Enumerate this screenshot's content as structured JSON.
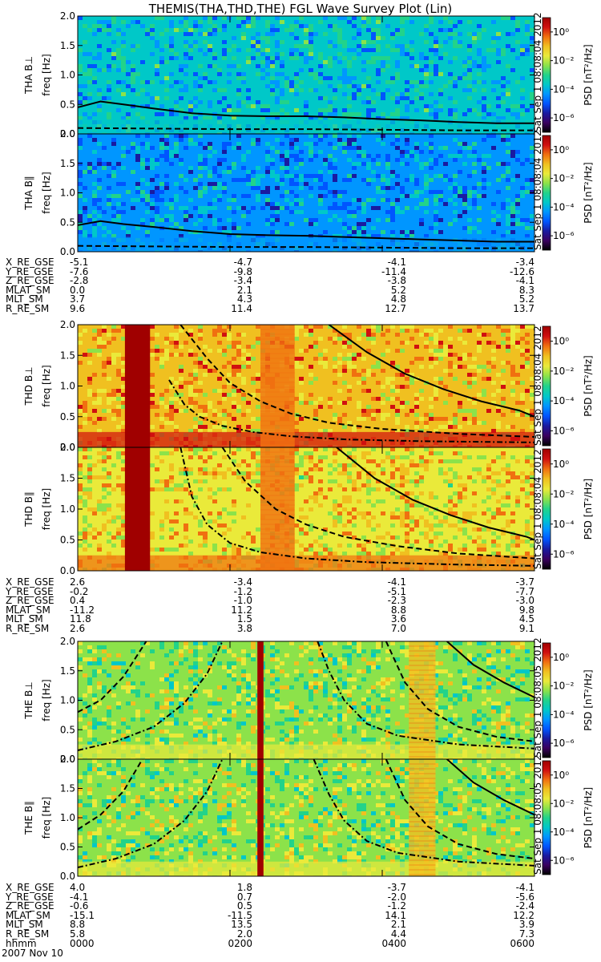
{
  "title": "THEMIS(THA,THD,THE) FGL Wave Survey Plot (Lin)",
  "colors": {
    "cmap": [
      "#000000",
      "#3a0060",
      "#1a1aa0",
      "#0055ff",
      "#0096ff",
      "#00c8c8",
      "#22d38a",
      "#8ce24a",
      "#eaea3a",
      "#f0c020",
      "#f07010",
      "#d01010",
      "#a00000"
    ],
    "line": "#000000",
    "frame": "#000000"
  },
  "chart_data": {
    "type": "heatmap",
    "x_unit": "hhmm",
    "x_range": [
      0,
      6
    ],
    "x_ticks": [
      "0000",
      "0200",
      "0400",
      "0600"
    ],
    "ylim": [
      0,
      2.0
    ],
    "y_ticks": [
      "0.0",
      "0.5",
      "1.0",
      "1.5",
      "2.0"
    ],
    "ylabel": "freq [Hz]",
    "colorbar": {
      "label": "PSD [nT²/Hz]",
      "ticks": [
        "10⁰",
        "10⁻²",
        "10⁻⁴",
        "10⁻⁶"
      ],
      "log_range": [
        -7,
        1
      ]
    },
    "panels": [
      {
        "probe": "THA",
        "component": "B⊥",
        "stamp": "Sat Sep 1 08:08:04 2012",
        "base_level": -3.8,
        "bg_level": 0.3,
        "lines": [
          {
            "style": "solid",
            "x": [
              0,
              0.3,
              0.6,
              1.0,
              1.5,
              2.0,
              2.5,
              3.0,
              3.5,
              4.0,
              4.5,
              5.0,
              5.5,
              6.0
            ],
            "y": [
              0.45,
              0.55,
              0.5,
              0.43,
              0.35,
              0.31,
              0.3,
              0.3,
              0.28,
              0.25,
              0.23,
              0.2,
              0.18,
              0.18
            ]
          },
          {
            "style": "dashed",
            "x": [
              0,
              1,
              2,
              3,
              4,
              5,
              6
            ],
            "y": [
              0.1,
              0.09,
              0.08,
              0.08,
              0.07,
              0.06,
              0.06
            ]
          }
        ]
      },
      {
        "probe": "THA",
        "component": "B∥",
        "stamp": "Sat Sep 1 08:08:04 2012",
        "base_level": -4.2,
        "bg_level": 0.2,
        "lines": [
          {
            "style": "solid",
            "x": [
              0,
              0.3,
              0.6,
              1.0,
              1.5,
              2.0,
              2.5,
              3.0,
              3.5,
              4.0,
              4.5,
              5.0,
              5.5,
              6.0
            ],
            "y": [
              0.45,
              0.52,
              0.47,
              0.42,
              0.35,
              0.3,
              0.28,
              0.27,
              0.25,
              0.23,
              0.21,
              0.19,
              0.17,
              0.17
            ]
          },
          {
            "style": "dashed",
            "x": [
              0,
              1,
              2,
              3,
              4,
              5,
              6
            ],
            "y": [
              0.1,
              0.09,
              0.08,
              0.08,
              0.07,
              0.06,
              0.06
            ]
          }
        ]
      },
      {
        "probe": "THD",
        "component": "B⊥",
        "stamp": "Sat Sep 1 08:08:04 2012",
        "base_level": -1.2,
        "bg_level": 1.0,
        "bursts": [
          {
            "x0": 0.62,
            "x1": 0.95,
            "level": 2.0
          }
        ],
        "bands": [
          {
            "x0": 2.4,
            "x1": 2.85,
            "level": -0.8
          }
        ],
        "lines": [
          {
            "style": "solid",
            "x": [
              3.3,
              3.8,
              4.3,
              4.8,
              5.3,
              5.8,
              6.0
            ],
            "y": [
              2.0,
              1.55,
              1.2,
              0.95,
              0.75,
              0.6,
              0.5
            ]
          },
          {
            "style": "dashed",
            "x": [
              1.35,
              1.7,
              2.0,
              2.4,
              2.8,
              3.3,
              4.0,
              5.0,
              6.0
            ],
            "y": [
              2.0,
              1.45,
              1.05,
              0.75,
              0.55,
              0.4,
              0.3,
              0.22,
              0.17
            ]
          },
          {
            "style": "dashdot",
            "x": [
              1.2,
              1.4,
              1.6,
              1.9,
              2.3,
              2.8,
              3.5,
              4.5,
              6.0
            ],
            "y": [
              1.1,
              0.7,
              0.5,
              0.35,
              0.25,
              0.18,
              0.13,
              0.1,
              0.08
            ]
          }
        ]
      },
      {
        "probe": "THD",
        "component": "B∥",
        "stamp": "Sat Sep 1 08:08:04 2012",
        "base_level": -1.5,
        "bg_level": 1.0,
        "bursts": [
          {
            "x0": 0.62,
            "x1": 0.95,
            "level": 2.0
          }
        ],
        "bands": [
          {
            "x0": 2.4,
            "x1": 2.85,
            "level": -0.8
          }
        ],
        "lines": [
          {
            "style": "solid",
            "x": [
              3.4,
              3.9,
              4.4,
              4.9,
              5.4,
              5.9,
              6.0
            ],
            "y": [
              2.0,
              1.5,
              1.15,
              0.9,
              0.7,
              0.55,
              0.5
            ]
          },
          {
            "style": "dashed",
            "x": [
              1.9,
              2.2,
              2.6,
              3.0,
              3.5,
              4.2,
              5.0,
              6.0
            ],
            "y": [
              2.0,
              1.45,
              1.0,
              0.75,
              0.55,
              0.4,
              0.28,
              0.2
            ]
          },
          {
            "style": "dashdot",
            "x": [
              1.35,
              1.5,
              1.7,
              2.0,
              2.4,
              3.0,
              3.8,
              5.0,
              6.0
            ],
            "y": [
              2.0,
              1.2,
              0.75,
              0.45,
              0.3,
              0.2,
              0.14,
              0.1,
              0.08
            ]
          }
        ]
      },
      {
        "probe": "THE",
        "component": "B⊥",
        "stamp": "Sat Sep 1 08:08:05 2012",
        "base_level": -2.3,
        "bg_level": 0.8,
        "bursts": [
          {
            "x0": 2.36,
            "x1": 2.44,
            "level": 2.0
          }
        ],
        "bands": [
          {
            "x0": 4.35,
            "x1": 4.7,
            "level": -1.0
          }
        ],
        "lines": [
          {
            "style": "solid",
            "x": [
              4.85,
              5.2,
              5.6,
              6.0
            ],
            "y": [
              2.0,
              1.6,
              1.3,
              1.05
            ]
          },
          {
            "style": "dashed",
            "x": [
              0,
              0.3,
              0.6,
              0.9
            ],
            "y": [
              0.8,
              1.0,
              1.4,
              2.0
            ]
          },
          {
            "style": "dashdot",
            "x": [
              0,
              0.5,
              1.0,
              1.4,
              1.7,
              1.9
            ],
            "y": [
              0.15,
              0.3,
              0.55,
              0.95,
              1.45,
              2.0
            ]
          },
          {
            "style": "dashdot",
            "x": [
              3.15,
              3.3,
              3.5,
              3.8,
              4.2,
              5.0,
              6.0
            ],
            "y": [
              2.0,
              1.5,
              1.0,
              0.6,
              0.4,
              0.25,
              0.18
            ]
          },
          {
            "style": "dashed",
            "x": [
              4.05,
              4.3,
              4.6,
              5.0,
              5.5,
              6.0
            ],
            "y": [
              2.0,
              1.3,
              0.85,
              0.55,
              0.38,
              0.3
            ]
          }
        ]
      },
      {
        "probe": "THE",
        "component": "B∥",
        "stamp": "Sat Sep 1 08:08:05 2012",
        "base_level": -2.3,
        "bg_level": 0.8,
        "bursts": [
          {
            "x0": 2.36,
            "x1": 2.44,
            "level": 2.0
          }
        ],
        "bands": [
          {
            "x0": 4.35,
            "x1": 4.7,
            "level": -1.0
          }
        ],
        "lines": [
          {
            "style": "solid",
            "x": [
              4.85,
              5.2,
              5.6,
              6.0
            ],
            "y": [
              2.0,
              1.6,
              1.3,
              1.05
            ]
          },
          {
            "style": "dashed",
            "x": [
              0,
              0.3,
              0.6,
              0.85
            ],
            "y": [
              0.8,
              1.05,
              1.45,
              2.0
            ]
          },
          {
            "style": "dashdot",
            "x": [
              0,
              0.5,
              1.0,
              1.4,
              1.7,
              1.9
            ],
            "y": [
              0.15,
              0.3,
              0.55,
              0.95,
              1.45,
              2.0
            ]
          },
          {
            "style": "dashdot",
            "x": [
              3.1,
              3.3,
              3.5,
              3.8,
              4.2,
              5.0,
              6.0
            ],
            "y": [
              2.0,
              1.4,
              0.95,
              0.6,
              0.4,
              0.25,
              0.18
            ]
          },
          {
            "style": "dashed",
            "x": [
              4.05,
              4.3,
              4.6,
              5.0,
              5.5,
              6.0
            ],
            "y": [
              2.0,
              1.3,
              0.85,
              0.55,
              0.38,
              0.3
            ]
          }
        ]
      }
    ]
  },
  "ephemeris": [
    {
      "probe": "THA",
      "rows": [
        {
          "label": "X_RE_GSE",
          "values": [
            "-5.1",
            "-4.7",
            "-4.1",
            "-3.4"
          ]
        },
        {
          "label": "Y_RE_GSE",
          "values": [
            "-7.6",
            "-9.8",
            "-11.4",
            "-12.6"
          ]
        },
        {
          "label": "Z_RE_GSE",
          "values": [
            "-2.8",
            "-3.4",
            "-3.8",
            "-4.1"
          ]
        },
        {
          "label": "MLAT_SM",
          "values": [
            "0.0",
            "2.1",
            "5.2",
            "8.3"
          ]
        },
        {
          "label": "MLT_SM",
          "values": [
            "3.7",
            "4.3",
            "4.8",
            "5.2"
          ]
        },
        {
          "label": "R_RE_SM",
          "values": [
            "9.6",
            "11.4",
            "12.7",
            "13.7"
          ]
        }
      ]
    },
    {
      "probe": "THD",
      "rows": [
        {
          "label": "X_RE_GSE",
          "values": [
            "2.6",
            "-3.4",
            "-4.1",
            "-3.7"
          ]
        },
        {
          "label": "Y_RE_GSE",
          "values": [
            "-0.2",
            "-1.2",
            "-5.1",
            "-7.7"
          ]
        },
        {
          "label": "Z_RE_GSE",
          "values": [
            "0.4",
            "-1.0",
            "-2.3",
            "-3.0"
          ]
        },
        {
          "label": "MLAT_SM",
          "values": [
            "-11.2",
            "11.2",
            "8.8",
            "9.8"
          ]
        },
        {
          "label": "MLT_SM",
          "values": [
            "11.8",
            "1.5",
            "3.6",
            "4.5"
          ]
        },
        {
          "label": "R_RE_SM",
          "values": [
            "2.6",
            "3.8",
            "7.0",
            "9.1"
          ]
        }
      ]
    },
    {
      "probe": "THE",
      "rows": [
        {
          "label": "X_RE_GSE",
          "values": [
            "4.0",
            "1.8",
            "-3.7",
            "-4.1"
          ]
        },
        {
          "label": "Y_RE_GSE",
          "values": [
            "-4.1",
            "0.7",
            "-2.0",
            "-5.6"
          ]
        },
        {
          "label": "Z_RE_GSE",
          "values": [
            "-0.6",
            "0.5",
            "-1.2",
            "-2.4"
          ]
        },
        {
          "label": "MLAT_SM",
          "values": [
            "-15.1",
            "-11.5",
            "14.1",
            "12.2"
          ]
        },
        {
          "label": "MLT_SM",
          "values": [
            "8.8",
            "13.5",
            "2.1",
            "3.9"
          ]
        },
        {
          "label": "R_RE_SM",
          "values": [
            "5.8",
            "2.0",
            "4.4",
            "7.3"
          ]
        },
        {
          "label": "hhmm",
          "values": [
            "0000",
            "0200",
            "0400",
            "0600"
          ]
        }
      ]
    }
  ],
  "date": "2007 Nov 10"
}
